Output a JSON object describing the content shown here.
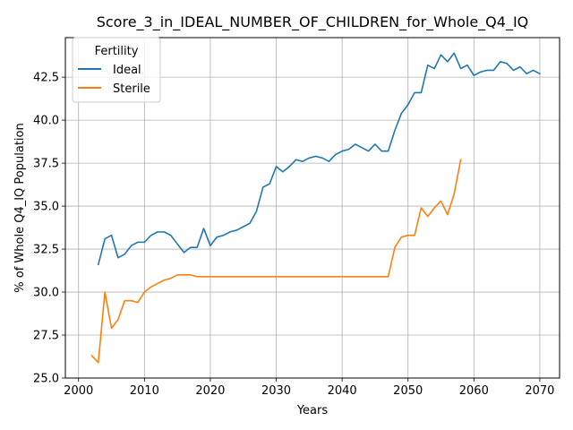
{
  "chart_data": {
    "type": "line",
    "title": "Score_3_in_IDEAL_NUMBER_OF_CHILDREN_for_Whole_Q4_IQ",
    "xlabel": "Years",
    "ylabel": "% of Whole Q4_IQ Population",
    "xlim": [
      1998,
      2073
    ],
    "ylim": [
      25.0,
      44.8
    ],
    "xticks": [
      2000,
      2010,
      2020,
      2030,
      2040,
      2050,
      2060,
      2070
    ],
    "yticks": [
      25.0,
      27.5,
      30.0,
      32.5,
      35.0,
      37.5,
      40.0,
      42.5
    ],
    "xtick_labels": [
      "2000",
      "2010",
      "2020",
      "2030",
      "2040",
      "2050",
      "2060",
      "2070"
    ],
    "ytick_labels": [
      "25.0",
      "27.5",
      "30.0",
      "32.5",
      "35.0",
      "37.5",
      "40.0",
      "42.5"
    ],
    "grid": true,
    "legend": {
      "title": "Fertility",
      "placement": "top-left"
    },
    "series": [
      {
        "name": "Ideal",
        "color": "#1f77b4",
        "x": [
          2003,
          2004,
          2005,
          2006,
          2007,
          2008,
          2009,
          2010,
          2011,
          2012,
          2013,
          2014,
          2015,
          2016,
          2017,
          2018,
          2019,
          2020,
          2021,
          2022,
          2023,
          2024,
          2025,
          2026,
          2027,
          2028,
          2029,
          2030,
          2031,
          2032,
          2033,
          2034,
          2035,
          2036,
          2037,
          2038,
          2039,
          2040,
          2041,
          2042,
          2043,
          2044,
          2045,
          2046,
          2047,
          2048,
          2049,
          2050,
          2051,
          2052,
          2053,
          2054,
          2055,
          2056,
          2057,
          2058,
          2059,
          2060,
          2061,
          2062,
          2063,
          2064,
          2065,
          2066,
          2067,
          2068,
          2069,
          2070
        ],
        "y": [
          31.6,
          33.1,
          33.3,
          32.0,
          32.2,
          32.7,
          32.9,
          32.9,
          33.3,
          33.5,
          33.5,
          33.3,
          32.8,
          32.3,
          32.6,
          32.6,
          33.7,
          32.7,
          33.2,
          33.3,
          33.5,
          33.6,
          33.8,
          34.0,
          34.7,
          36.1,
          36.3,
          37.3,
          37.0,
          37.3,
          37.7,
          37.6,
          37.8,
          37.9,
          37.8,
          37.6,
          38.0,
          38.2,
          38.3,
          38.6,
          38.4,
          38.2,
          38.6,
          38.2,
          38.2,
          39.4,
          40.4,
          40.9,
          41.6,
          41.6,
          43.2,
          43.0,
          43.8,
          43.4,
          43.9,
          43.0,
          43.2,
          42.6,
          42.8,
          42.9,
          42.9,
          43.4,
          43.3,
          42.9,
          43.1,
          42.7,
          42.9,
          42.7
        ]
      },
      {
        "name": "Sterile",
        "color": "#ff7f0e",
        "x": [
          2002,
          2003,
          2004,
          2005,
          2006,
          2007,
          2008,
          2009,
          2010,
          2011,
          2012,
          2013,
          2014,
          2015,
          2016,
          2017,
          2018,
          2019,
          2020,
          2021,
          2022,
          2023,
          2024,
          2025,
          2026,
          2027,
          2028,
          2029,
          2030,
          2031,
          2032,
          2033,
          2034,
          2035,
          2036,
          2037,
          2038,
          2039,
          2040,
          2041,
          2042,
          2043,
          2044,
          2045,
          2046,
          2047,
          2048,
          2049,
          2050,
          2051,
          2052,
          2053,
          2054,
          2055,
          2056,
          2057,
          2058
        ],
        "y": [
          26.3,
          25.9,
          30.0,
          27.9,
          28.4,
          29.5,
          29.5,
          29.4,
          30.0,
          30.3,
          30.5,
          30.7,
          30.8,
          31.0,
          31.0,
          31.0,
          30.9,
          30.9,
          30.9,
          30.9,
          30.9,
          30.9,
          30.9,
          30.9,
          30.9,
          30.9,
          30.9,
          30.9,
          30.9,
          30.9,
          30.9,
          30.9,
          30.9,
          30.9,
          30.9,
          30.9,
          30.9,
          30.9,
          30.9,
          30.9,
          30.9,
          30.9,
          30.9,
          30.9,
          30.9,
          30.9,
          32.6,
          33.2,
          33.3,
          33.3,
          34.9,
          34.4,
          34.9,
          35.3,
          34.5,
          35.7,
          37.7
        ]
      }
    ]
  }
}
